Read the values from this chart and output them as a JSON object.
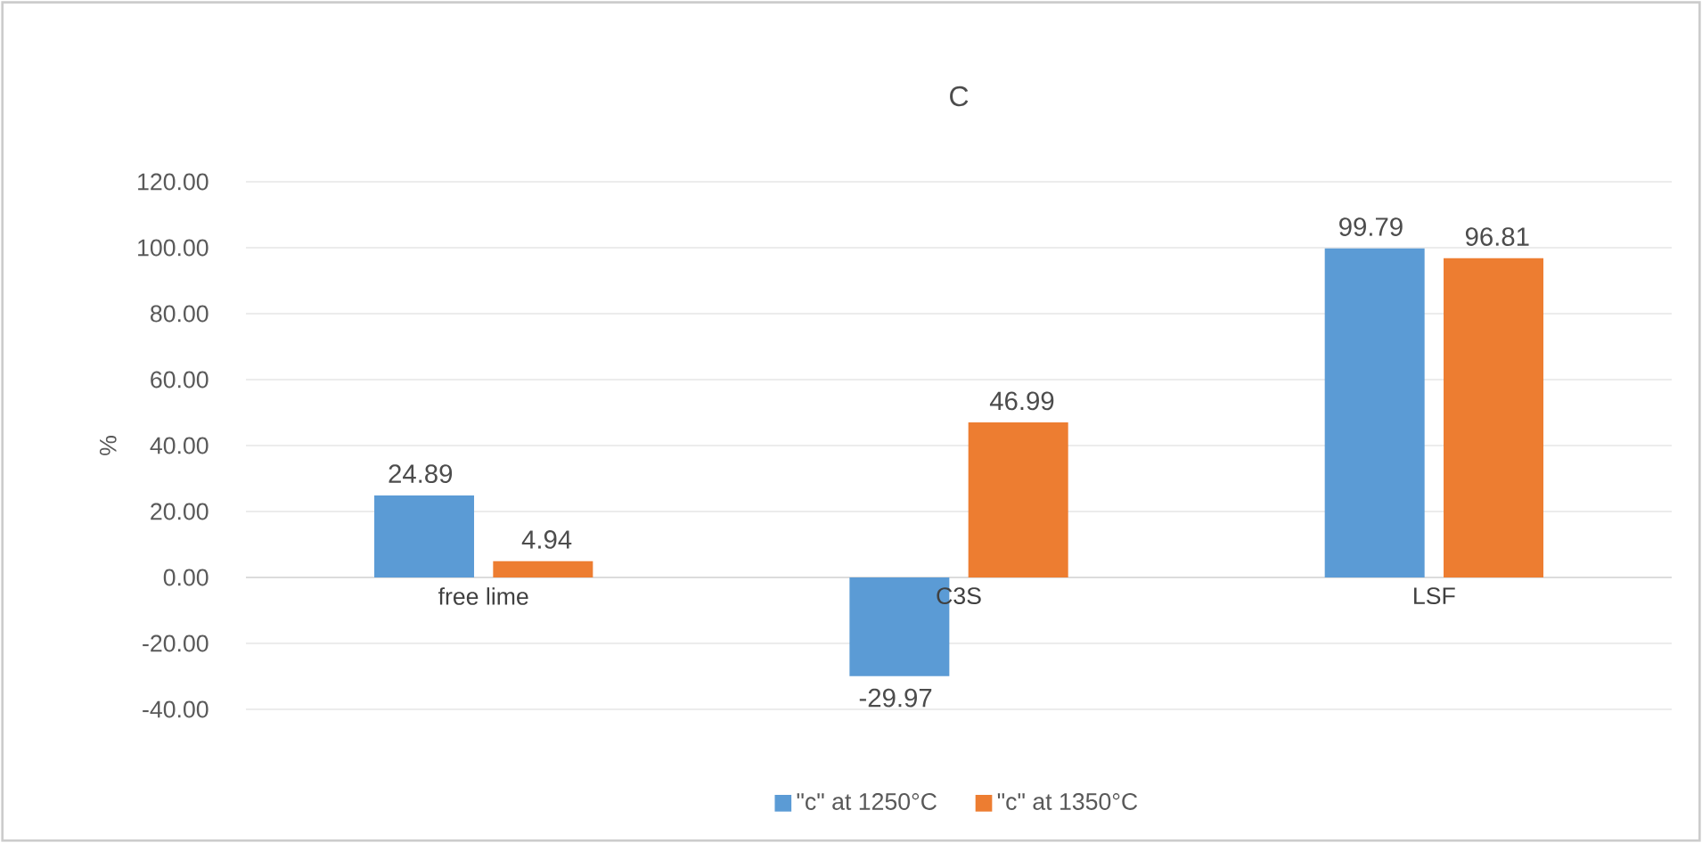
{
  "chart_data": {
    "type": "bar",
    "title": "C",
    "ylabel": "%",
    "categories": [
      "free lime",
      "C3S",
      "LSF"
    ],
    "series": [
      {
        "name": "\"c\" at 1250°C",
        "color": "#5b9bd5",
        "values": [
          24.89,
          -29.97,
          99.79
        ]
      },
      {
        "name": "\"c\" at 1350°C",
        "color": "#ed7d31",
        "values": [
          4.94,
          46.99,
          96.81
        ]
      }
    ],
    "ylim": [
      -40,
      120
    ],
    "yticks": [
      {
        "value": -40,
        "label": "-40.00"
      },
      {
        "value": -20,
        "label": "-20.00"
      },
      {
        "value": 0,
        "label": "0.00"
      },
      {
        "value": 20,
        "label": "20.00"
      },
      {
        "value": 40,
        "label": "40.00"
      },
      {
        "value": 60,
        "label": "60.00"
      },
      {
        "value": 80,
        "label": "80.00"
      },
      {
        "value": 100,
        "label": "100.00"
      },
      {
        "value": 120,
        "label": "120.00"
      }
    ],
    "grid": "y",
    "legend": "bottom",
    "data_labels": true
  }
}
